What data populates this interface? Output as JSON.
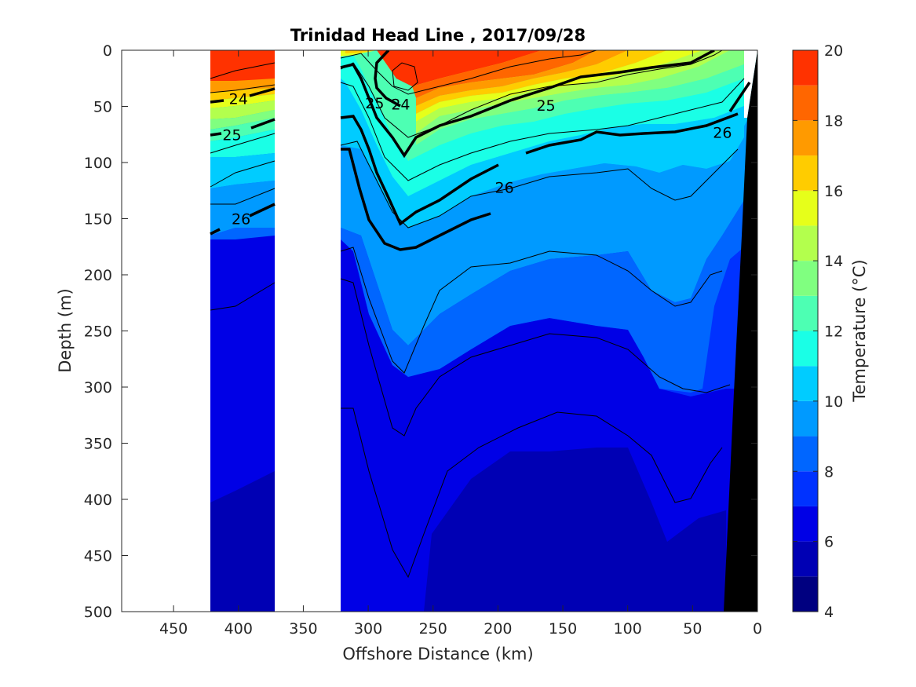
{
  "chart_data": {
    "type": "heatmap",
    "title": "Trinidad Head Line , 2017/09/28",
    "xlabel": "Offshore Distance (km)",
    "ylabel": "Depth (m)",
    "xlim": [
      490,
      0
    ],
    "ylim": [
      0,
      500
    ],
    "x_ticks": [
      "450",
      "400",
      "350",
      "300",
      "250",
      "200",
      "150",
      "100",
      "50",
      "0"
    ],
    "y_ticks": [
      "0",
      "50",
      "100",
      "150",
      "200",
      "250",
      "300",
      "350",
      "400",
      "450",
      "500"
    ],
    "colorbar": {
      "label": "Temperature (°C)",
      "range": [
        4,
        20
      ],
      "ticks": [
        "4",
        "6",
        "8",
        "10",
        "12",
        "14",
        "16",
        "18",
        "20"
      ],
      "levels": [
        4,
        5,
        6,
        7,
        8,
        9,
        10,
        11,
        12,
        13,
        14,
        15,
        16,
        17,
        18,
        19,
        20
      ],
      "colors": [
        "#000080",
        "#0000b4",
        "#0000e6",
        "#0032ff",
        "#0066ff",
        "#009aff",
        "#00ccff",
        "#1affe6",
        "#4dffb3",
        "#80ff80",
        "#b3ff4d",
        "#e6ff1a",
        "#ffcc00",
        "#ff9a00",
        "#ff6600",
        "#ff3200",
        "#d40000",
        "#990000"
      ]
    },
    "data_gaps_km": [
      [
        490,
        420
      ],
      [
        370,
        320
      ],
      [
        10,
        0
      ]
    ],
    "isopycnal_labels": [
      {
        "text": "24",
        "x": 400,
        "y": 43
      },
      {
        "text": "25",
        "x": 405,
        "y": 75
      },
      {
        "text": "26",
        "x": 398,
        "y": 150
      },
      {
        "text": "25",
        "x": 295,
        "y": 47
      },
      {
        "text": "24",
        "x": 275,
        "y": 48
      },
      {
        "text": "25",
        "x": 163,
        "y": 49
      },
      {
        "text": "26",
        "x": 195,
        "y": 122
      },
      {
        "text": "26",
        "x": 27,
        "y": 73
      }
    ]
  }
}
